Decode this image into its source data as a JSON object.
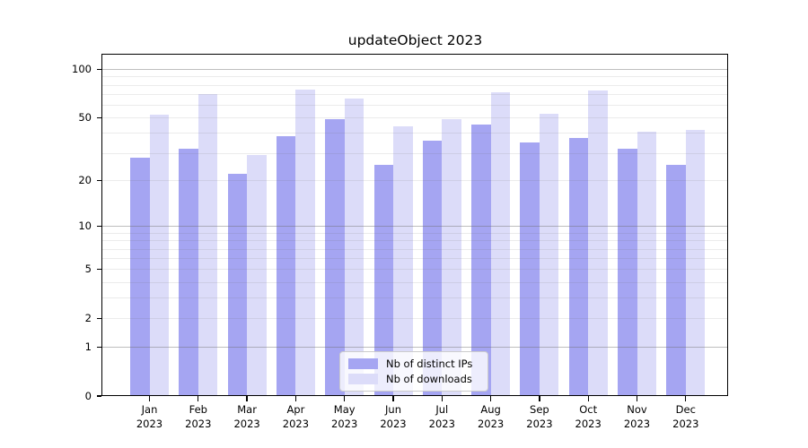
{
  "figure": {
    "background": "#ffffff"
  },
  "chart_data": {
    "type": "bar",
    "title": "updateObject 2023",
    "categories": [
      "Jan 2023",
      "Feb 2023",
      "Mar 2023",
      "Apr 2023",
      "May 2023",
      "Jun 2023",
      "Jul 2023",
      "Aug 2023",
      "Sep 2023",
      "Oct 2023",
      "Nov 2023",
      "Dec 2023"
    ],
    "months": [
      "Jan",
      "Feb",
      "Mar",
      "Apr",
      "May",
      "Jun",
      "Jul",
      "Aug",
      "Sep",
      "Oct",
      "Nov",
      "Dec"
    ],
    "year": "2023",
    "series": [
      {
        "name": "Nb of distinct IPs",
        "color": "#a5a5f2",
        "values": [
          28,
          32,
          22,
          38,
          49,
          25,
          36,
          45,
          35,
          37,
          32,
          25
        ]
      },
      {
        "name": "Nb of downloads",
        "color": "#dcdcf9",
        "values": [
          52,
          70,
          29,
          75,
          66,
          44,
          49,
          72,
          53,
          74,
          41,
          42
        ]
      }
    ],
    "yscale": "log1p",
    "y_ticks": [
      0,
      1,
      2,
      5,
      10,
      20,
      50,
      100
    ],
    "ylim": [
      0,
      123
    ],
    "xlabel": "",
    "ylabel": "",
    "grid": true,
    "legend_position": "lower center",
    "axis_color": "#000000",
    "major_grid_color": "rgba(110,110,110,0.45)",
    "minor_grid_color": "rgba(110,110,110,0.14)"
  }
}
